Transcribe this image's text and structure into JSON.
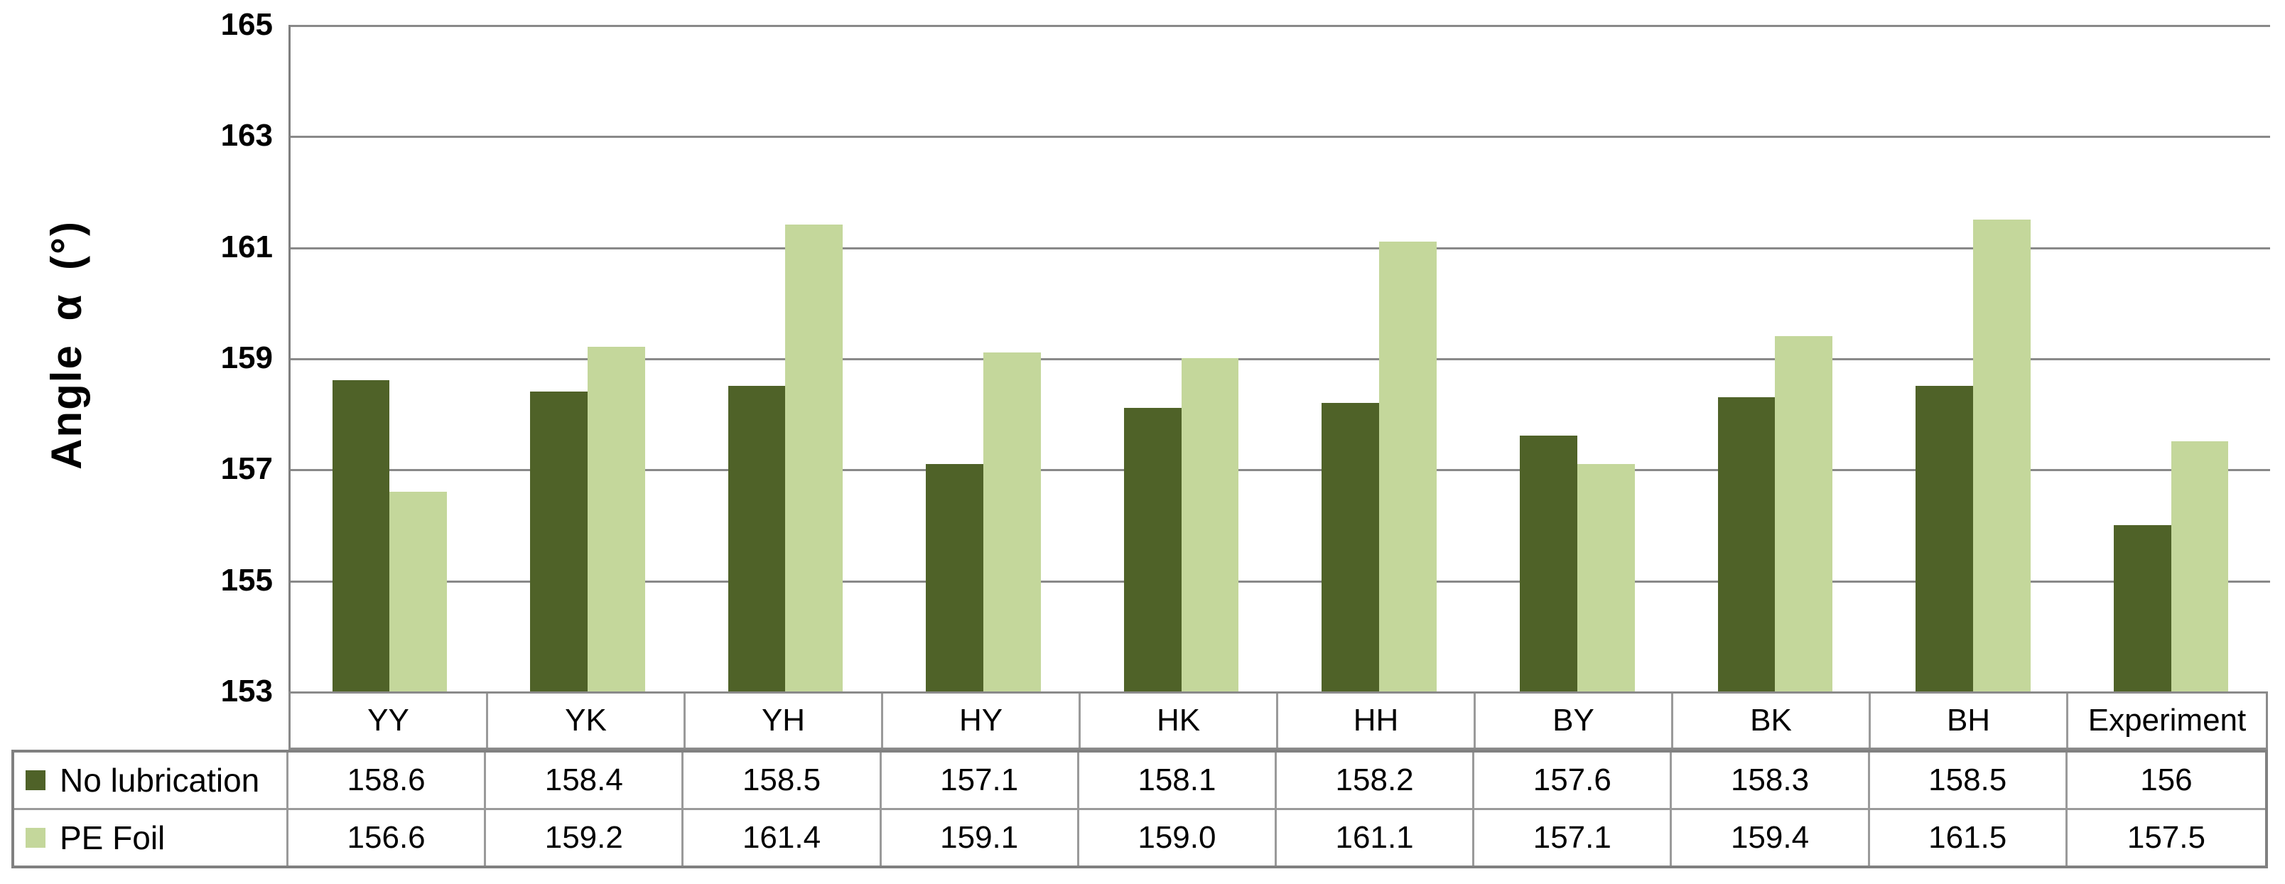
{
  "chart_data": {
    "type": "bar",
    "title": "",
    "xlabel": "",
    "ylabel": "Angle α (°)",
    "ylim": [
      153,
      165
    ],
    "ytick_step": 2,
    "yticks": [
      "165",
      "163",
      "161",
      "159",
      "157",
      "155",
      "153"
    ],
    "grid": true,
    "legend_position": "data-table-left",
    "data_table_shown": true,
    "categories": [
      "YY",
      "YK",
      "YH",
      "HY",
      "HK",
      "HH",
      "BY",
      "BK",
      "BH",
      "Experiment"
    ],
    "series": [
      {
        "name": "No lubrication",
        "color": "#4F6228",
        "values": [
          158.6,
          158.4,
          158.5,
          157.1,
          158.1,
          158.2,
          157.6,
          158.3,
          158.5,
          156
        ],
        "display": [
          "158.6",
          "158.4",
          "158.5",
          "157.1",
          "158.1",
          "158.2",
          "157.6",
          "158.3",
          "158.5",
          "156"
        ]
      },
      {
        "name": "PE Foil",
        "color": "#C4D79B",
        "values": [
          156.6,
          159.2,
          161.4,
          159.1,
          159.0,
          161.1,
          157.1,
          159.4,
          161.5,
          157.5
        ],
        "display": [
          "156.6",
          "159.2",
          "161.4",
          "159.1",
          "159.0",
          "161.1",
          "157.1",
          "159.4",
          "161.5",
          "157.5"
        ]
      }
    ],
    "colors": {
      "gridline": "#898989",
      "axis_line": "#808080",
      "table_border": "#8a8a8a",
      "text": "#000000",
      "background": "#ffffff"
    }
  }
}
